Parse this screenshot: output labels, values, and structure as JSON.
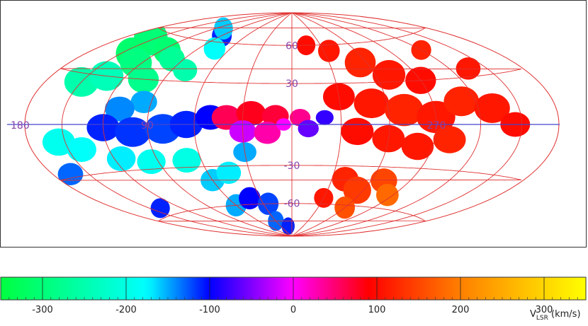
{
  "chart_data": {
    "type": "heatmap",
    "projection": "aitoff-hammer",
    "title": "",
    "background": "#ffffff",
    "grid": true,
    "grid_color": "#e03030",
    "equator_color": "#4444cc",
    "longitude_labels": [
      {
        "text": "180",
        "lon": 180
      },
      {
        "text": "90",
        "lon": 90
      },
      {
        "text": "270",
        "lon": 270
      }
    ],
    "latitude_labels": [
      {
        "text": "60",
        "lat": 60
      },
      {
        "text": "30",
        "lat": 30
      },
      {
        "text": "-30",
        "lat": -30
      },
      {
        "text": "-60",
        "lat": -60
      }
    ],
    "label_color": "#8844aa",
    "colorbar": {
      "range": [
        -350,
        350
      ],
      "ticks": [
        -300,
        -200,
        -100,
        0,
        100,
        200,
        300
      ],
      "tick_labels": [
        "-300",
        "-200",
        "-100",
        "0",
        "100",
        "200",
        "300"
      ],
      "label_main": "V",
      "label_sub": "LSR",
      "label_unit": " (km/s)",
      "colors": [
        "#00ff40",
        "#00ffff",
        "#0000ff",
        "#ff00ff",
        "#ff0000",
        "#ff8000",
        "#ffff00"
      ],
      "color_stops": [
        -350,
        -175,
        -100,
        0,
        90,
        200,
        350
      ]
    },
    "regions": [
      {
        "lon": 155,
        "lat": 55,
        "r": 14,
        "v": -300
      },
      {
        "lon": 140,
        "lat": 45,
        "r": 13,
        "v": -310
      },
      {
        "lon": 125,
        "lat": 40,
        "r": 12,
        "v": -290
      },
      {
        "lon": 115,
        "lat": 50,
        "r": 11,
        "v": -305
      },
      {
        "lon": 150,
        "lat": 25,
        "r": 12,
        "v": -250
      },
      {
        "lon": 135,
        "lat": 30,
        "r": 12,
        "v": -240
      },
      {
        "lon": 105,
        "lat": 30,
        "r": 11,
        "v": -280
      },
      {
        "lon": 100,
        "lat": 45,
        "r": 10,
        "v": -270
      },
      {
        "lon": 90,
        "lat": 65,
        "r": 9,
        "v": -110
      },
      {
        "lon": 110,
        "lat": 70,
        "r": 9,
        "v": -160
      },
      {
        "lon": 75,
        "lat": 55,
        "r": 9,
        "v": -180
      },
      {
        "lon": 80,
        "lat": 38,
        "r": 9,
        "v": -250
      },
      {
        "lon": 95,
        "lat": 15,
        "r": 9,
        "v": -150
      },
      {
        "lon": 110,
        "lat": 10,
        "r": 10,
        "v": -140
      },
      {
        "lon": 120,
        "lat": -2,
        "r": 11,
        "v": -110
      },
      {
        "lon": 100,
        "lat": -5,
        "r": 12,
        "v": -115
      },
      {
        "lon": 80,
        "lat": -3,
        "r": 12,
        "v": -120
      },
      {
        "lon": 65,
        "lat": 0,
        "r": 11,
        "v": -110
      },
      {
        "lon": 50,
        "lat": 5,
        "r": 10,
        "v": -100
      },
      {
        "lon": 155,
        "lat": -10,
        "r": 11,
        "v": -190
      },
      {
        "lon": 140,
        "lat": -15,
        "r": 10,
        "v": -180
      },
      {
        "lon": 165,
        "lat": -28,
        "r": 9,
        "v": -130
      },
      {
        "lon": 115,
        "lat": -22,
        "r": 10,
        "v": -170
      },
      {
        "lon": 95,
        "lat": -25,
        "r": 10,
        "v": -190
      },
      {
        "lon": 70,
        "lat": -25,
        "r": 10,
        "v": -200
      },
      {
        "lon": 60,
        "lat": -40,
        "r": 9,
        "v": -160
      },
      {
        "lon": 45,
        "lat": -35,
        "r": 9,
        "v": -170
      },
      {
        "lon": 140,
        "lat": -55,
        "r": 8,
        "v": -110
      },
      {
        "lon": 60,
        "lat": -60,
        "r": 9,
        "v": -150
      },
      {
        "lon": 40,
        "lat": -55,
        "r": 9,
        "v": -100
      },
      {
        "lon": 25,
        "lat": -60,
        "r": 9,
        "v": -120
      },
      {
        "lon": 30,
        "lat": -75,
        "r": 8,
        "v": -130
      },
      {
        "lon": 10,
        "lat": -80,
        "r": 7,
        "v": -110
      },
      {
        "lon": 30,
        "lat": -20,
        "r": 8,
        "v": -150
      },
      {
        "lon": 40,
        "lat": 5,
        "r": 10,
        "v": 60
      },
      {
        "lon": 25,
        "lat": 8,
        "r": 10,
        "v": 80
      },
      {
        "lon": 10,
        "lat": 6,
        "r": 9,
        "v": 70
      },
      {
        "lon": 355,
        "lat": 5,
        "r": 7,
        "v": 40
      },
      {
        "lon": 30,
        "lat": -5,
        "r": 9,
        "v": -20
      },
      {
        "lon": 15,
        "lat": -6,
        "r": 9,
        "v": 30
      },
      {
        "lon": 5,
        "lat": 0,
        "r": 5,
        "v": 0
      },
      {
        "lon": 350,
        "lat": -3,
        "r": 7,
        "v": -60
      },
      {
        "lon": 340,
        "lat": 5,
        "r": 6,
        "v": -80
      },
      {
        "lon": 345,
        "lat": 60,
        "r": 8,
        "v": 100
      },
      {
        "lon": 325,
        "lat": 55,
        "r": 9,
        "v": 110
      },
      {
        "lon": 305,
        "lat": 45,
        "r": 12,
        "v": 120
      },
      {
        "lon": 290,
        "lat": 35,
        "r": 12,
        "v": 110
      },
      {
        "lon": 270,
        "lat": 30,
        "r": 11,
        "v": 100
      },
      {
        "lon": 240,
        "lat": 50,
        "r": 8,
        "v": 120
      },
      {
        "lon": 225,
        "lat": 35,
        "r": 9,
        "v": 110
      },
      {
        "lon": 330,
        "lat": 20,
        "r": 11,
        "v": 100
      },
      {
        "lon": 310,
        "lat": 15,
        "r": 12,
        "v": 110
      },
      {
        "lon": 290,
        "lat": 10,
        "r": 13,
        "v": 120
      },
      {
        "lon": 270,
        "lat": 5,
        "r": 13,
        "v": 110
      },
      {
        "lon": 250,
        "lat": 15,
        "r": 12,
        "v": 120
      },
      {
        "lon": 230,
        "lat": 10,
        "r": 12,
        "v": 110
      },
      {
        "lon": 215,
        "lat": 0,
        "r": 10,
        "v": 100
      },
      {
        "lon": 320,
        "lat": -5,
        "r": 11,
        "v": 100
      },
      {
        "lon": 300,
        "lat": -10,
        "r": 11,
        "v": 110
      },
      {
        "lon": 280,
        "lat": -15,
        "r": 11,
        "v": 110
      },
      {
        "lon": 260,
        "lat": -10,
        "r": 11,
        "v": 120
      },
      {
        "lon": 320,
        "lat": -40,
        "r": 10,
        "v": 120
      },
      {
        "lon": 305,
        "lat": -48,
        "r": 11,
        "v": 140
      },
      {
        "lon": 290,
        "lat": -40,
        "r": 10,
        "v": 150
      },
      {
        "lon": 275,
        "lat": -50,
        "r": 9,
        "v": 180
      },
      {
        "lon": 300,
        "lat": -62,
        "r": 9,
        "v": 160
      },
      {
        "lon": 330,
        "lat": -55,
        "r": 8,
        "v": 110
      }
    ]
  }
}
